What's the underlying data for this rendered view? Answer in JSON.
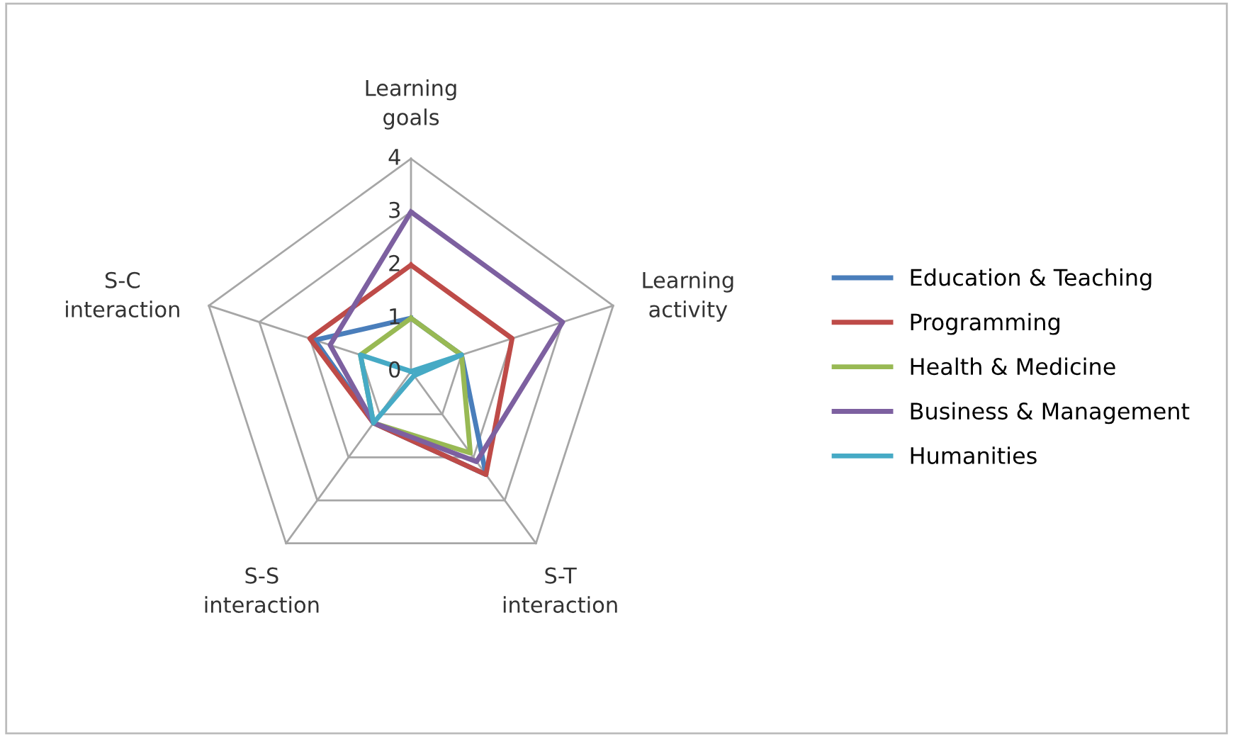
{
  "chart_data": {
    "type": "radar",
    "categories": [
      "Learning\ngoals",
      "Learning\nactivity",
      "S-T\ninteraction",
      "S-S\ninteraction",
      "S-C\ninteraction"
    ],
    "series": [
      {
        "name": "Education & Teaching",
        "color": "#4a7ebb",
        "values": [
          1,
          1,
          2.4,
          1.2,
          1.9
        ]
      },
      {
        "name": "Programming",
        "color": "#be4b48",
        "values": [
          2,
          2,
          2.4,
          1.2,
          2
        ]
      },
      {
        "name": "Health & Medicine",
        "color": "#98b954",
        "values": [
          1,
          1,
          1.9,
          1.2,
          1
        ]
      },
      {
        "name": "Business & Management",
        "color": "#7d60a0",
        "values": [
          3,
          3,
          2.1,
          1.2,
          1.6
        ]
      },
      {
        "name": "Humanities",
        "color": "#46aac5",
        "values": [
          0,
          1,
          0.1,
          1.2,
          1
        ]
      }
    ],
    "ylim": [
      0,
      4
    ],
    "yticks": [
      0,
      1,
      2,
      3,
      4
    ],
    "grid": true,
    "legend": "right",
    "marker": "none",
    "line_style": "solid"
  }
}
